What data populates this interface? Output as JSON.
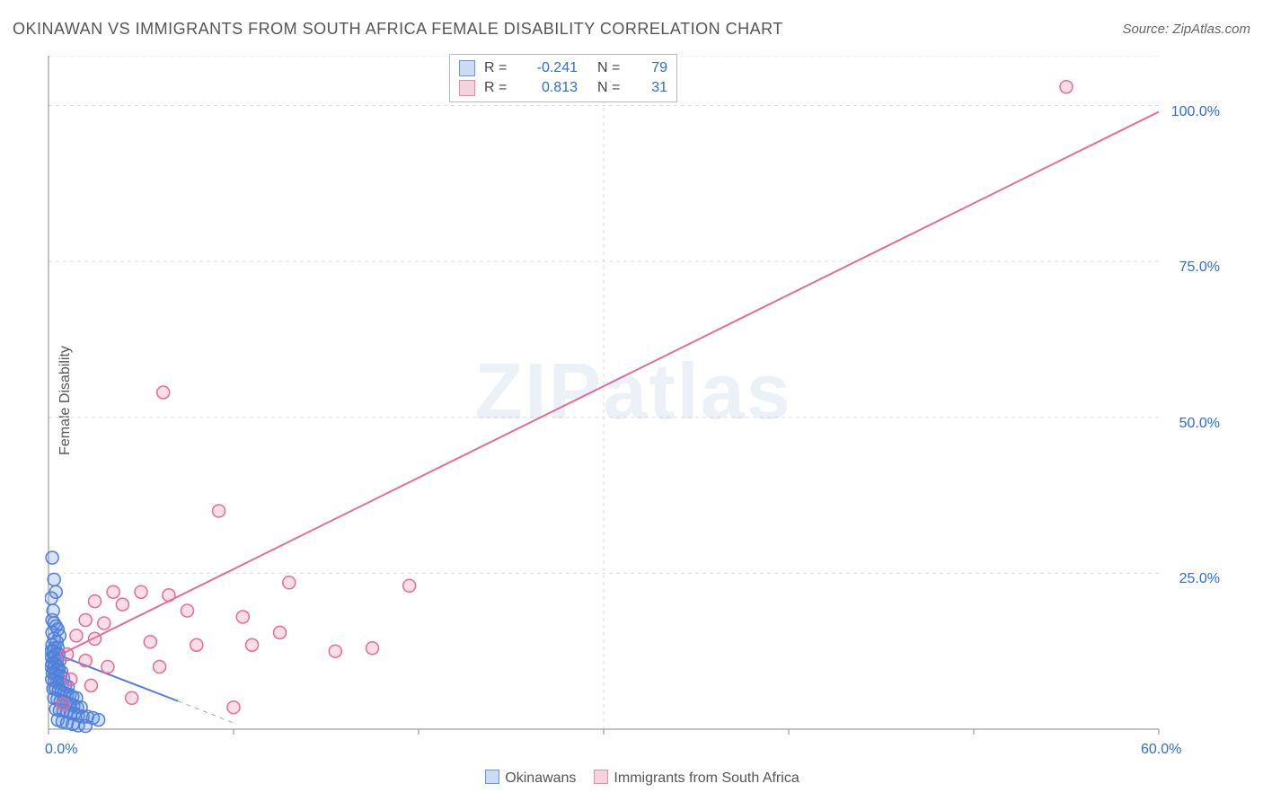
{
  "title": "OKINAWAN VS IMMIGRANTS FROM SOUTH AFRICA FEMALE DISABILITY CORRELATION CHART",
  "source": "Source: ZipAtlas.com",
  "ylabel": "Female Disability",
  "watermark": "ZIPatlas",
  "chart": {
    "type": "scatter+regression",
    "background": "#ffffff",
    "grid_color": "#dddddd",
    "grid_dash": "4 4",
    "axis_color": "#888888",
    "axis_label_color": "#2b6cd6",
    "axis_label_fontsize": 16,
    "xlim": [
      0,
      60
    ],
    "ylim": [
      0,
      108
    ],
    "x_ticks": [
      0,
      10,
      20,
      30,
      40,
      50,
      60
    ],
    "x_tick_labels": [
      "0.0%",
      "",
      "",
      "",
      "",
      "",
      "60.0%"
    ],
    "y_ticks": [
      25,
      50,
      75,
      100
    ],
    "y_tick_labels": [
      "25.0%",
      "50.0%",
      "75.0%",
      "100.0%"
    ],
    "marker_radius": 7,
    "marker_stroke_width": 1.5,
    "line_width": 2,
    "series": [
      {
        "name": "Okinawans",
        "fill": "rgba(93,145,230,0.25)",
        "stroke": "#4f7fd6",
        "swatch_fill": "#c9dbf7",
        "swatch_border": "#6b93de",
        "R": "-0.241",
        "N": "79",
        "regression": {
          "x1": 0,
          "y1": 12.5,
          "x2": 7,
          "y2": 4.5,
          "dashed": true,
          "ext_x2": 10,
          "ext_y2": 1
        },
        "points": [
          [
            0.2,
            27.5
          ],
          [
            0.3,
            24.0
          ],
          [
            0.4,
            22.0
          ],
          [
            0.15,
            21.0
          ],
          [
            0.25,
            19.0
          ],
          [
            0.2,
            17.5
          ],
          [
            0.3,
            17.0
          ],
          [
            0.4,
            16.5
          ],
          [
            0.5,
            16.0
          ],
          [
            0.2,
            15.5
          ],
          [
            0.6,
            15.0
          ],
          [
            0.3,
            14.5
          ],
          [
            0.45,
            14.0
          ],
          [
            0.2,
            13.5
          ],
          [
            0.35,
            13.0
          ],
          [
            0.5,
            13.0
          ],
          [
            0.15,
            12.5
          ],
          [
            0.25,
            12.5
          ],
          [
            0.4,
            12.0
          ],
          [
            0.55,
            12.0
          ],
          [
            0.18,
            11.5
          ],
          [
            0.3,
            11.5
          ],
          [
            0.45,
            11.0
          ],
          [
            0.6,
            11.0
          ],
          [
            0.2,
            10.5
          ],
          [
            0.35,
            10.5
          ],
          [
            0.5,
            10.0
          ],
          [
            0.15,
            10.0
          ],
          [
            0.28,
            9.8
          ],
          [
            0.42,
            9.5
          ],
          [
            0.55,
            9.5
          ],
          [
            0.7,
            9.2
          ],
          [
            0.22,
            9.0
          ],
          [
            0.38,
            8.8
          ],
          [
            0.5,
            8.5
          ],
          [
            0.65,
            8.5
          ],
          [
            0.8,
            8.2
          ],
          [
            0.18,
            8.0
          ],
          [
            0.32,
            7.8
          ],
          [
            0.46,
            7.5
          ],
          [
            0.6,
            7.5
          ],
          [
            0.75,
            7.2
          ],
          [
            0.9,
            7.0
          ],
          [
            1.05,
            6.8
          ],
          [
            0.25,
            6.5
          ],
          [
            0.4,
            6.5
          ],
          [
            0.55,
            6.2
          ],
          [
            0.7,
            6.0
          ],
          [
            0.85,
            5.8
          ],
          [
            1.0,
            5.5
          ],
          [
            1.15,
            5.5
          ],
          [
            1.3,
            5.2
          ],
          [
            1.5,
            5.0
          ],
          [
            0.3,
            5.0
          ],
          [
            0.48,
            4.8
          ],
          [
            0.65,
            4.5
          ],
          [
            0.82,
            4.5
          ],
          [
            1.0,
            4.2
          ],
          [
            1.18,
            4.0
          ],
          [
            1.35,
            3.8
          ],
          [
            1.55,
            3.5
          ],
          [
            1.75,
            3.5
          ],
          [
            0.4,
            3.2
          ],
          [
            0.6,
            3.0
          ],
          [
            0.8,
            3.0
          ],
          [
            1.0,
            2.8
          ],
          [
            1.2,
            2.5
          ],
          [
            1.4,
            2.5
          ],
          [
            1.6,
            2.2
          ],
          [
            1.85,
            2.0
          ],
          [
            2.1,
            2.0
          ],
          [
            2.4,
            1.8
          ],
          [
            2.7,
            1.5
          ],
          [
            0.5,
            1.5
          ],
          [
            0.75,
            1.2
          ],
          [
            1.0,
            1.0
          ],
          [
            1.3,
            0.8
          ],
          [
            1.6,
            0.6
          ],
          [
            2.0,
            0.5
          ]
        ]
      },
      {
        "name": "Immigrants from South Africa",
        "fill": "rgba(240,120,160,0.25)",
        "stroke": "#e86a9a",
        "swatch_fill": "#f7d2de",
        "swatch_border": "#ea88ab",
        "R": "0.813",
        "N": "31",
        "regression": {
          "x1": 0,
          "y1": 11,
          "x2": 60,
          "y2": 99,
          "dashed": false
        },
        "points": [
          [
            55.0,
            103.0
          ],
          [
            6.2,
            54.0
          ],
          [
            9.2,
            35.0
          ],
          [
            13.0,
            23.5
          ],
          [
            19.5,
            23.0
          ],
          [
            3.5,
            22.0
          ],
          [
            5.0,
            22.0
          ],
          [
            6.5,
            21.5
          ],
          [
            2.5,
            20.5
          ],
          [
            4.0,
            20.0
          ],
          [
            7.5,
            19.0
          ],
          [
            10.5,
            18.0
          ],
          [
            2.0,
            17.5
          ],
          [
            3.0,
            17.0
          ],
          [
            12.5,
            15.5
          ],
          [
            1.5,
            15.0
          ],
          [
            2.5,
            14.5
          ],
          [
            5.5,
            14.0
          ],
          [
            8.0,
            13.5
          ],
          [
            11.0,
            13.5
          ],
          [
            15.5,
            12.5
          ],
          [
            1.0,
            12.0
          ],
          [
            2.0,
            11.0
          ],
          [
            3.2,
            10.0
          ],
          [
            6.0,
            10.0
          ],
          [
            17.5,
            13.0
          ],
          [
            1.2,
            8.0
          ],
          [
            2.3,
            7.0
          ],
          [
            4.5,
            5.0
          ],
          [
            10.0,
            3.5
          ],
          [
            0.8,
            4.0
          ]
        ]
      }
    ],
    "legend_bottom": [
      {
        "label": "Okinawans",
        "series_index": 0
      },
      {
        "label": "Immigrants from South Africa",
        "series_index": 1
      }
    ]
  }
}
